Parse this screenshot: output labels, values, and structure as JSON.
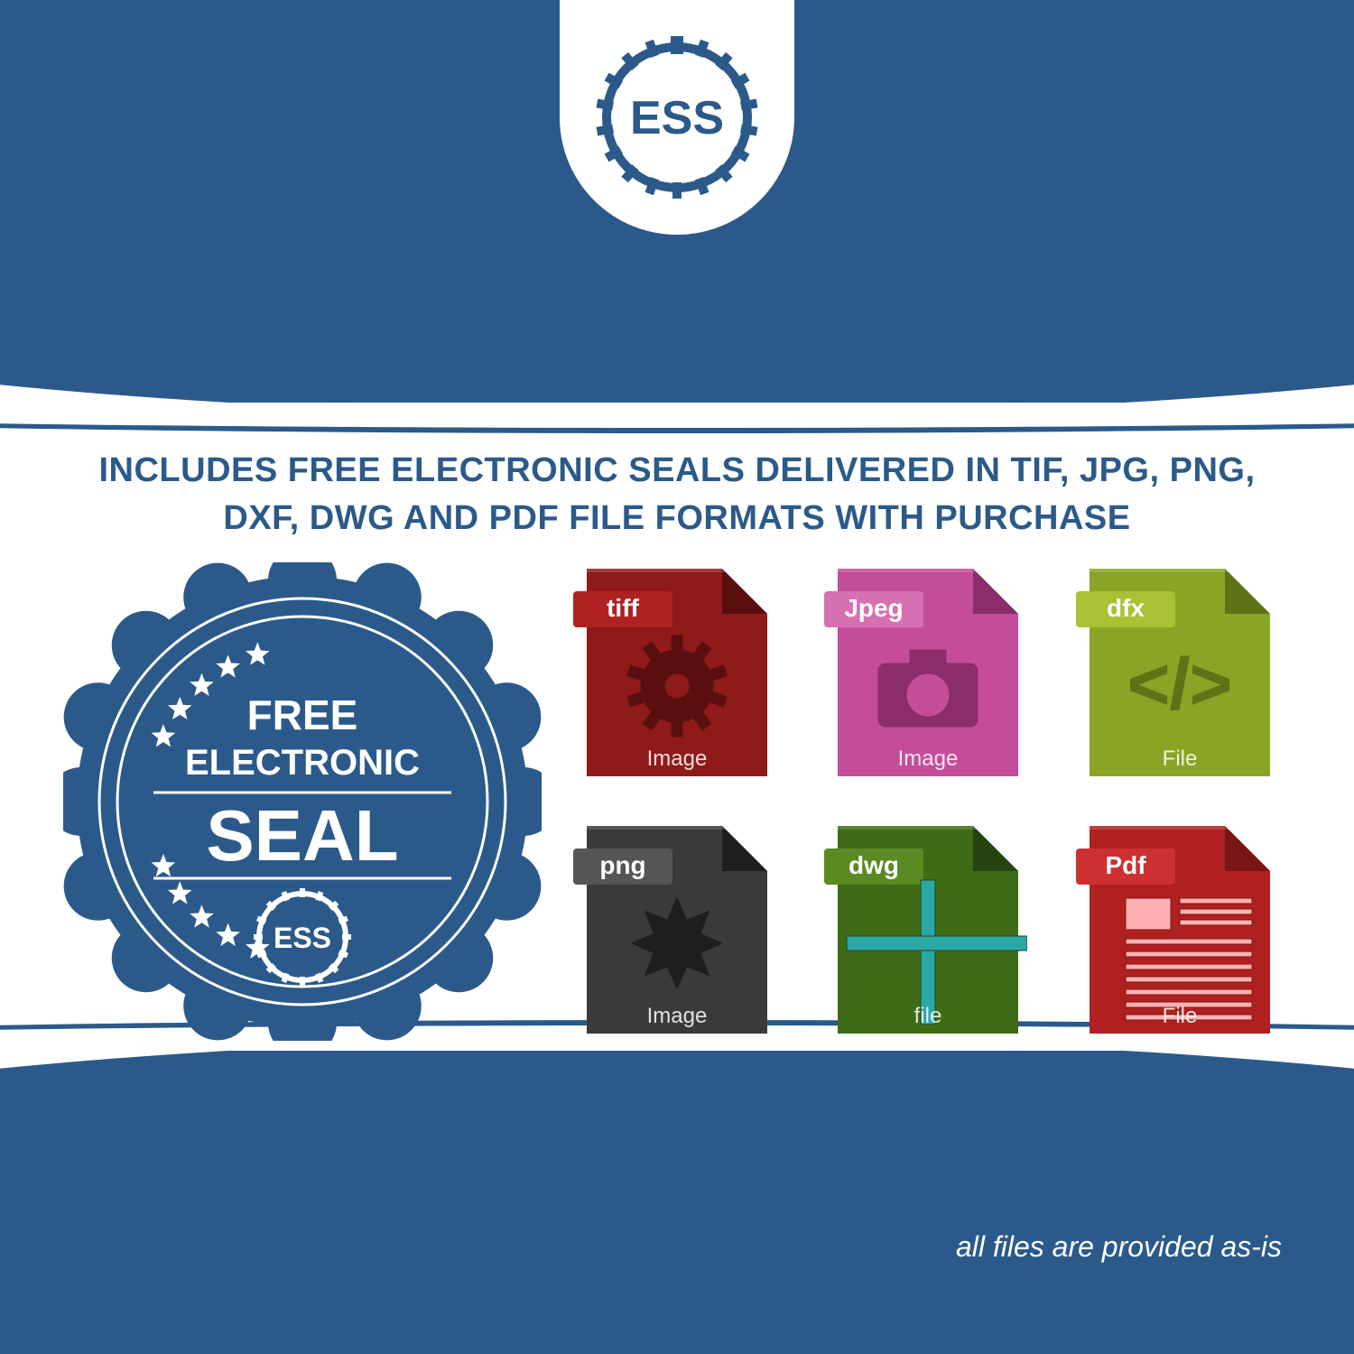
{
  "colors": {
    "brand_blue": "#2b5a8a",
    "white": "#ffffff"
  },
  "logo": {
    "text": "ESS",
    "gear_color": "#2b5a8a",
    "text_color": "#2b5a8a",
    "bg": "#ffffff"
  },
  "headline": "INCLUDES FREE ELECTRONIC SEALS DELIVERED IN TIF, JPG, PNG, DXF, DWG AND PDF FILE FORMATS WITH PURCHASE",
  "seal": {
    "line1": "FREE",
    "line2": "ELECTRONIC",
    "line3": "SEAL",
    "inner_logo": "ESS",
    "bg": "#2b5a8a",
    "fg": "#ffffff",
    "star_count": 10
  },
  "files": [
    {
      "tag": "tiff",
      "sub": "Image",
      "main_color": "#8e1a1a",
      "accent": "#b02222",
      "dark": "#5a0f0f",
      "glyph": "gear"
    },
    {
      "tag": "Jpeg",
      "sub": "Image",
      "main_color": "#c44d9a",
      "accent": "#d670b3",
      "dark": "#8a2d6a",
      "glyph": "camera"
    },
    {
      "tag": "dfx",
      "sub": "File",
      "main_color": "#8aa525",
      "accent": "#a9c235",
      "dark": "#5e7316",
      "glyph": "code"
    },
    {
      "tag": "png",
      "sub": "Image",
      "main_color": "#3a3a3a",
      "accent": "#555555",
      "dark": "#1e1e1e",
      "glyph": "burst"
    },
    {
      "tag": "dwg",
      "sub": "file",
      "main_color": "#3e6b16",
      "accent": "#5a8a22",
      "dark": "#274410",
      "glyph": "cross"
    },
    {
      "tag": "Pdf",
      "sub": "File",
      "main_color": "#b02020",
      "accent": "#cc3030",
      "dark": "#7a1515",
      "glyph": "doc"
    }
  ],
  "footnote": "all files are provided as-is"
}
